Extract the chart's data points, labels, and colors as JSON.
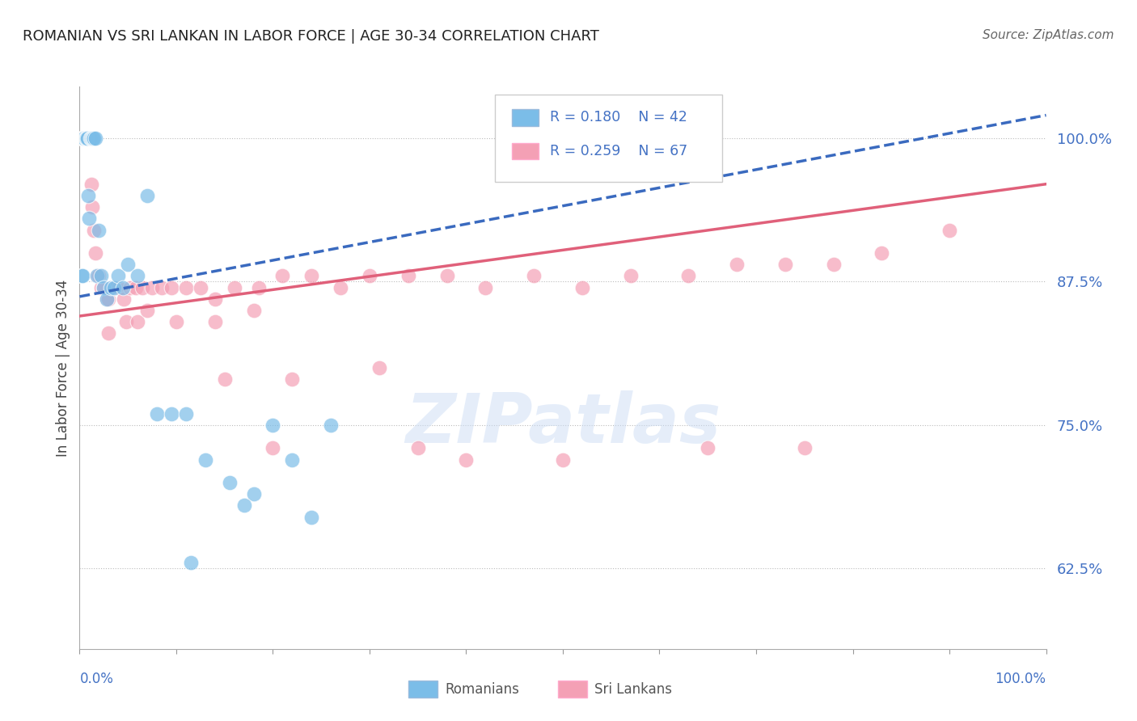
{
  "title": "ROMANIAN VS SRI LANKAN IN LABOR FORCE | AGE 30-34 CORRELATION CHART",
  "source": "Source: ZipAtlas.com",
  "ylabel": "In Labor Force | Age 30-34",
  "ytick_labels": [
    "62.5%",
    "75.0%",
    "87.5%",
    "100.0%"
  ],
  "ytick_values": [
    0.625,
    0.75,
    0.875,
    1.0
  ],
  "xlim": [
    0.0,
    1.0
  ],
  "ylim": [
    0.555,
    1.045
  ],
  "legend_r_blue": "R = 0.180",
  "legend_n_blue": "N = 42",
  "legend_r_pink": "R = 0.259",
  "legend_n_pink": "N = 67",
  "blue_color": "#7bbde8",
  "pink_color": "#f4a0b5",
  "blue_line_color": "#3a6abf",
  "pink_line_color": "#e0607a",
  "background_color": "#ffffff",
  "blue_x": [
    0.002,
    0.003,
    0.004,
    0.004,
    0.005,
    0.005,
    0.006,
    0.007,
    0.007,
    0.008,
    0.009,
    0.01,
    0.011,
    0.012,
    0.013,
    0.014,
    0.015,
    0.016,
    0.018,
    0.02,
    0.022,
    0.025,
    0.028,
    0.032,
    0.036,
    0.04,
    0.045,
    0.05,
    0.06,
    0.07,
    0.08,
    0.095,
    0.11,
    0.13,
    0.155,
    0.18,
    0.2,
    0.22,
    0.24,
    0.26,
    0.115,
    0.17
  ],
  "blue_y": [
    0.88,
    0.88,
    1.0,
    1.0,
    1.0,
    1.0,
    1.0,
    1.0,
    1.0,
    1.0,
    0.95,
    0.93,
    1.0,
    1.0,
    1.0,
    1.0,
    1.0,
    1.0,
    0.88,
    0.92,
    0.88,
    0.87,
    0.86,
    0.87,
    0.87,
    0.88,
    0.87,
    0.89,
    0.88,
    0.95,
    0.76,
    0.76,
    0.76,
    0.72,
    0.7,
    0.69,
    0.75,
    0.72,
    0.67,
    0.75,
    0.63,
    0.68
  ],
  "pink_x": [
    0.002,
    0.003,
    0.004,
    0.005,
    0.006,
    0.007,
    0.008,
    0.009,
    0.01,
    0.011,
    0.012,
    0.013,
    0.015,
    0.016,
    0.018,
    0.02,
    0.022,
    0.025,
    0.028,
    0.03,
    0.033,
    0.037,
    0.041,
    0.046,
    0.052,
    0.058,
    0.065,
    0.075,
    0.085,
    0.095,
    0.11,
    0.125,
    0.14,
    0.16,
    0.185,
    0.21,
    0.24,
    0.27,
    0.3,
    0.34,
    0.38,
    0.42,
    0.47,
    0.52,
    0.57,
    0.63,
    0.68,
    0.73,
    0.78,
    0.83,
    0.03,
    0.048,
    0.06,
    0.07,
    0.1,
    0.14,
    0.18,
    0.22,
    0.15,
    0.31,
    0.2,
    0.35,
    0.4,
    0.5,
    0.65,
    0.75,
    0.9
  ],
  "pink_y": [
    1.0,
    1.0,
    1.0,
    1.0,
    1.0,
    1.0,
    1.0,
    1.0,
    1.0,
    1.0,
    0.96,
    0.94,
    0.92,
    0.9,
    0.88,
    0.88,
    0.87,
    0.87,
    0.86,
    0.86,
    0.87,
    0.87,
    0.87,
    0.86,
    0.87,
    0.87,
    0.87,
    0.87,
    0.87,
    0.87,
    0.87,
    0.87,
    0.86,
    0.87,
    0.87,
    0.88,
    0.88,
    0.87,
    0.88,
    0.88,
    0.88,
    0.87,
    0.88,
    0.87,
    0.88,
    0.88,
    0.89,
    0.89,
    0.89,
    0.9,
    0.83,
    0.84,
    0.84,
    0.85,
    0.84,
    0.84,
    0.85,
    0.79,
    0.79,
    0.8,
    0.73,
    0.73,
    0.72,
    0.72,
    0.73,
    0.73,
    0.92
  ],
  "blue_line_x": [
    0.0,
    1.0
  ],
  "blue_line_y": [
    0.862,
    1.02
  ],
  "pink_line_x": [
    0.0,
    1.0
  ],
  "pink_line_y": [
    0.845,
    0.96
  ]
}
